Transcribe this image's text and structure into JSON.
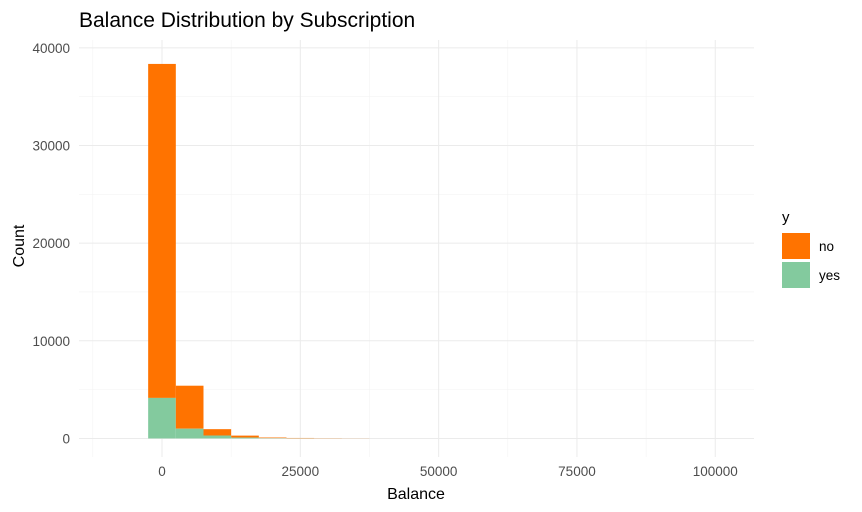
{
  "chart_data": {
    "type": "bar",
    "subtype": "stacked-histogram",
    "title": "Balance Distribution by Subscription",
    "xlabel": "Balance",
    "ylabel": "Count",
    "xlim": [
      -15000,
      107000
    ],
    "ylim": [
      -1900,
      40800
    ],
    "x_ticks": [
      0,
      25000,
      50000,
      75000,
      100000
    ],
    "x_tick_labels": [
      "0",
      "25000",
      "50000",
      "75000",
      "100000"
    ],
    "y_ticks": [
      0,
      10000,
      20000,
      30000,
      40000
    ],
    "y_tick_labels": [
      "0",
      "10000",
      "20000",
      "30000",
      "40000"
    ],
    "grid": true,
    "legend": {
      "title": "y",
      "position": "right"
    },
    "bins": [
      {
        "x0": -2500,
        "x1": 2500,
        "no": 34200,
        "yes": 4150
      },
      {
        "x0": 2500,
        "x1": 7500,
        "no": 4400,
        "yes": 1000
      },
      {
        "x0": 7500,
        "x1": 12500,
        "no": 650,
        "yes": 300
      },
      {
        "x0": 12500,
        "x1": 17500,
        "no": 200,
        "yes": 90
      },
      {
        "x0": 17500,
        "x1": 22500,
        "no": 70,
        "yes": 25
      },
      {
        "x0": 22500,
        "x1": 27500,
        "no": 40,
        "yes": 10
      },
      {
        "x0": 27500,
        "x1": 32500,
        "no": 20,
        "yes": 5
      },
      {
        "x0": 32500,
        "x1": 37500,
        "no": 10,
        "yes": 3
      }
    ],
    "series": [
      {
        "name": "no",
        "color": "#ff7300"
      },
      {
        "name": "yes",
        "color": "#83ca9e"
      }
    ]
  }
}
